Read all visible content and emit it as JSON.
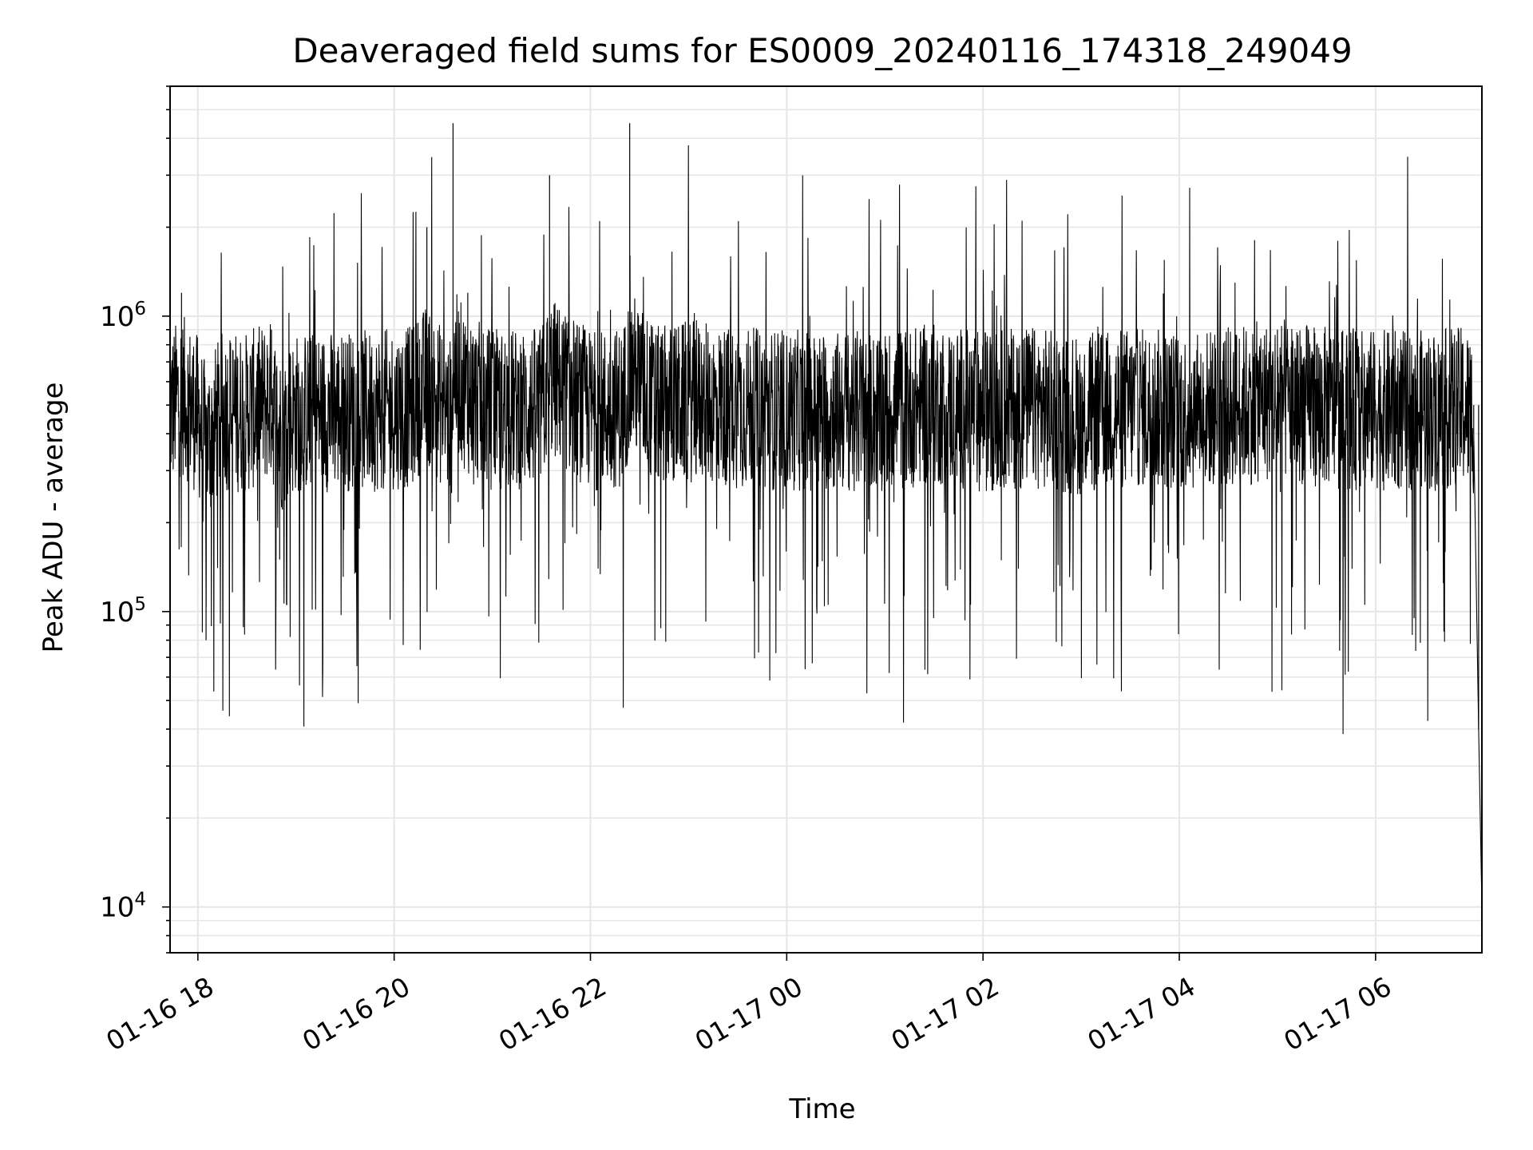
{
  "chart_data": {
    "type": "line",
    "title": "Deaveraged field sums for ES0009_20240116_174318_249049",
    "xlabel": "Time",
    "ylabel": "Peak ADU - average",
    "y_scale": "log",
    "ylim": [
      7000,
      6000000
    ],
    "xlim": [
      "2024-01-16 17:43",
      "2024-01-17 07:05"
    ],
    "x_ticks": [
      {
        "value": "2024-01-16 18:00",
        "label": "01-16 18"
      },
      {
        "value": "2024-01-16 20:00",
        "label": "01-16 20"
      },
      {
        "value": "2024-01-16 22:00",
        "label": "01-16 22"
      },
      {
        "value": "2024-01-17 00:00",
        "label": "01-17 00"
      },
      {
        "value": "2024-01-17 02:00",
        "label": "01-17 02"
      },
      {
        "value": "2024-01-17 04:00",
        "label": "01-17 04"
      },
      {
        "value": "2024-01-17 06:00",
        "label": "01-17 06"
      }
    ],
    "y_ticks": [
      {
        "value": 10000,
        "base": "10",
        "exp": "4"
      },
      {
        "value": 100000,
        "base": "10",
        "exp": "5"
      },
      {
        "value": 1000000,
        "base": "10",
        "exp": "6"
      }
    ],
    "grid": true,
    "line_color": "#000000",
    "series": [
      {
        "x": [
          "2024-01-16 17:43",
          "2024-01-16 17:50",
          "2024-01-16 18:00",
          "2024-01-16 18:05",
          "2024-01-16 18:15",
          "2024-01-16 18:30",
          "2024-01-16 18:45",
          "2024-01-16 18:50",
          "2024-01-16 19:00",
          "2024-01-16 19:30",
          "2024-01-16 19:50",
          "2024-01-16 20:10",
          "2024-01-16 20:20",
          "2024-01-16 20:35",
          "2024-01-16 20:36",
          "2024-01-16 20:45",
          "2024-01-16 21:00",
          "2024-01-16 21:30",
          "2024-01-16 21:35",
          "2024-01-16 22:00",
          "2024-01-16 22:20",
          "2024-01-16 22:24",
          "2024-01-16 22:40",
          "2024-01-16 23:00",
          "2024-01-16 23:30",
          "2024-01-17 00:00",
          "2024-01-17 00:30",
          "2024-01-17 01:00",
          "2024-01-17 01:30",
          "2024-01-17 02:00",
          "2024-01-17 02:30",
          "2024-01-17 03:00",
          "2024-01-17 03:30",
          "2024-01-17 04:00",
          "2024-01-17 04:30",
          "2024-01-17 05:00",
          "2024-01-17 05:30",
          "2024-01-17 06:00",
          "2024-01-17 06:30",
          "2024-01-17 06:55",
          "2024-01-17 07:00",
          "2024-01-17 07:03",
          "2024-01-17 07:05"
        ],
        "values": [
          500000,
          1200000,
          400000,
          80000,
          500000,
          450000,
          900000,
          150000,
          450000,
          500000,
          500000,
          600000,
          2000000,
          300000,
          4500000,
          1200000,
          500000,
          600000,
          3000000,
          500000,
          600000,
          4500000,
          600000,
          800000,
          600000,
          500000,
          500000,
          500000,
          700000,
          500000,
          600000,
          400000,
          600000,
          500000,
          600000,
          900000,
          600000,
          500000,
          500000,
          600000,
          400000,
          40000,
          10000
        ]
      }
    ]
  }
}
